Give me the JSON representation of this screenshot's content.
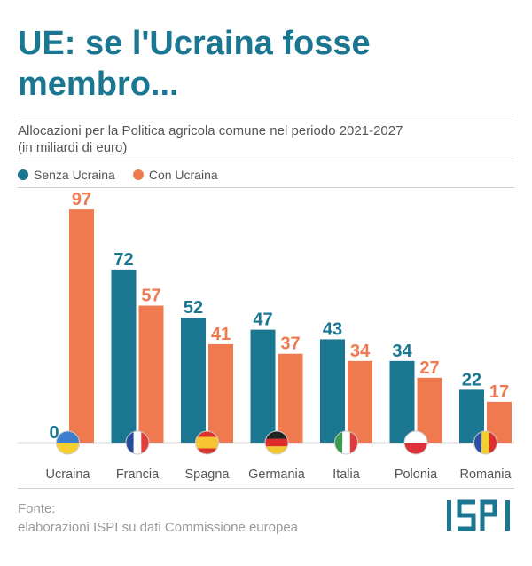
{
  "title": "UE: se l'Ucraina fosse membro...",
  "subtitle_line1": "Allocazioni per la Politica agricola comune nel periodo 2021-2027",
  "subtitle_line2": "(in miliardi di euro)",
  "source_label": "Fonte:",
  "source_text": "elaborazioni ISPI su dati Commissione europea",
  "logo_text": "ISPI",
  "colors": {
    "without": "#1a7691",
    "with": "#ef7a4f",
    "title": "#1a7691"
  },
  "chart_data": {
    "type": "bar",
    "categories": [
      "Ucraina",
      "Francia",
      "Spagna",
      "Germania",
      "Italia",
      "Polonia",
      "Romania"
    ],
    "series": [
      {
        "name": "Senza Ucraina",
        "values": [
          0,
          72,
          52,
          47,
          43,
          34,
          22
        ]
      },
      {
        "name": "Con Ucraina",
        "values": [
          97,
          57,
          41,
          37,
          34,
          27,
          17
        ]
      }
    ],
    "ylim": [
      0,
      100
    ],
    "legend": "top-left",
    "grid": false,
    "category_icons": [
      "flag-ukraine-icon",
      "flag-france-icon",
      "flag-spain-icon",
      "flag-germany-icon",
      "flag-italy-icon",
      "flag-poland-icon",
      "flag-romania-icon"
    ]
  }
}
